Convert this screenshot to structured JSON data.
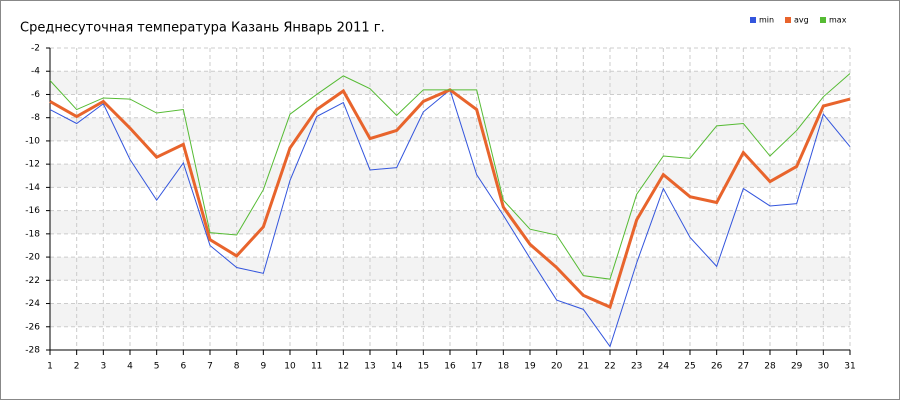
{
  "chart_data": {
    "type": "line",
    "title": "Среднесуточная температура Казань  Январь 2011 г.",
    "x": [
      1,
      2,
      3,
      4,
      5,
      6,
      7,
      8,
      9,
      10,
      11,
      12,
      13,
      14,
      15,
      16,
      17,
      18,
      19,
      20,
      21,
      22,
      23,
      24,
      25,
      26,
      27,
      28,
      29,
      30,
      31
    ],
    "xlim": [
      1,
      31
    ],
    "xticks": [
      1,
      2,
      3,
      4,
      5,
      6,
      7,
      8,
      9,
      10,
      11,
      12,
      13,
      14,
      15,
      16,
      17,
      18,
      19,
      20,
      21,
      22,
      23,
      24,
      25,
      26,
      27,
      28,
      29,
      30,
      31
    ],
    "ylim": [
      -28,
      -2
    ],
    "yticks": [
      -28,
      -26,
      -24,
      -22,
      -20,
      -18,
      -16,
      -14,
      -12,
      -10,
      -8,
      -6,
      -4,
      -2
    ],
    "grid": true,
    "legend": "top-right",
    "series": [
      {
        "name": "min",
        "color": "#3355dd",
        "values": [
          -7.3,
          -8.5,
          -6.8,
          -11.6,
          -15.1,
          -11.9,
          -19.0,
          -20.9,
          -21.4,
          -13.4,
          -7.9,
          -6.7,
          -12.5,
          -12.3,
          -7.5,
          -5.6,
          -12.9,
          -16.4,
          -20.1,
          -23.7,
          -24.5,
          -27.7,
          -20.5,
          -14.1,
          -18.3,
          -20.8,
          -14.1,
          -15.6,
          -15.4,
          -7.7,
          -10.5
        ]
      },
      {
        "name": "avg",
        "color": "#e8642c",
        "values": [
          -6.6,
          -7.9,
          -6.6,
          -8.9,
          -11.4,
          -10.3,
          -18.5,
          -19.9,
          -17.4,
          -10.6,
          -7.3,
          -5.7,
          -9.8,
          -9.1,
          -6.6,
          -5.6,
          -7.3,
          -15.7,
          -18.9,
          -20.9,
          -23.3,
          -24.3,
          -16.8,
          -12.9,
          -14.8,
          -15.3,
          -11.0,
          -13.5,
          -12.2,
          -7.0,
          -6.4
        ]
      },
      {
        "name": "max",
        "color": "#55bb33",
        "values": [
          -4.8,
          -7.3,
          -6.3,
          -6.4,
          -7.6,
          -7.3,
          -17.9,
          -18.1,
          -14.2,
          -7.7,
          -6.0,
          -4.4,
          -5.5,
          -7.8,
          -5.6,
          -5.6,
          -5.6,
          -15.1,
          -17.6,
          -18.1,
          -21.6,
          -21.9,
          -14.6,
          -11.3,
          -11.5,
          -8.7,
          -8.5,
          -11.3,
          -9.1,
          -6.2,
          -4.2
        ]
      }
    ]
  }
}
